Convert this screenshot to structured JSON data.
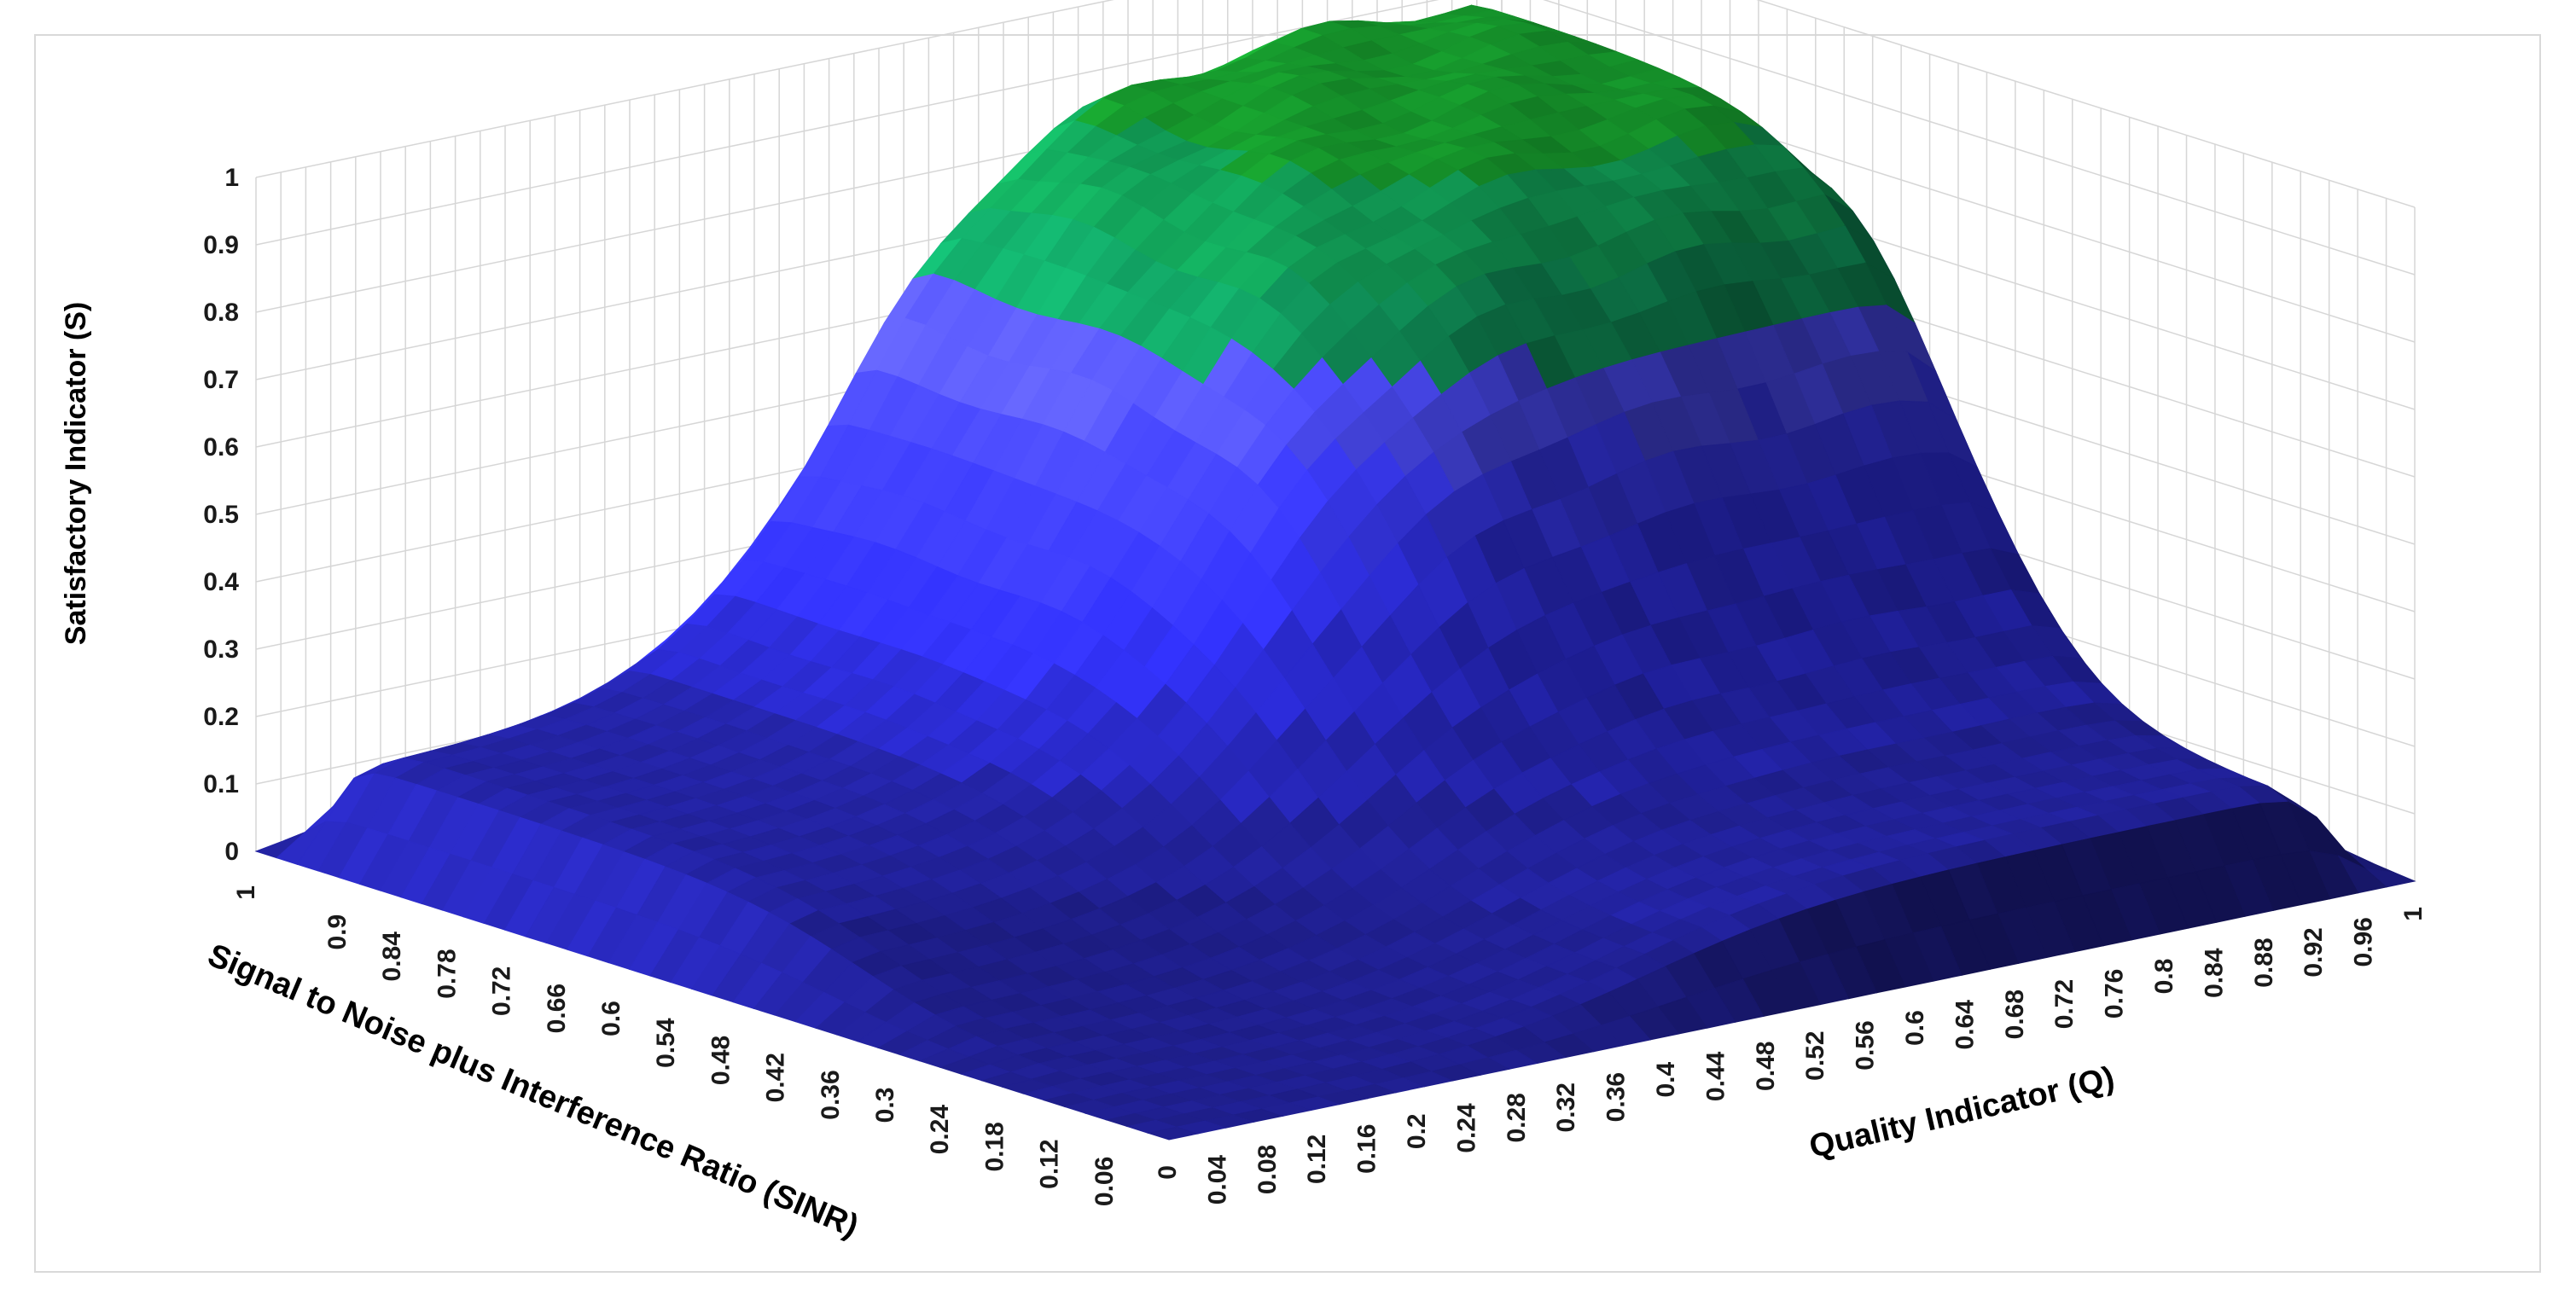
{
  "chart_data": {
    "type": "surface",
    "title": "",
    "xlabel": "Quality Indicator (Q)",
    "ylabel": "Signal to Noise plus Interference Ratio (SINR)",
    "zlabel": "Satisfactory Indicator (S)",
    "z_ticks": [
      "0",
      "0.1",
      "0.2",
      "0.3",
      "0.4",
      "0.5",
      "0.6",
      "0.7",
      "0.8",
      "0.9",
      "1"
    ],
    "q_ticks": [
      "0",
      "0.04",
      "0.08",
      "0.12",
      "0.16",
      "0.2",
      "0.24",
      "0.28",
      "0.32",
      "0.36",
      "0.4",
      "0.44",
      "0.48",
      "0.52",
      "0.56",
      "0.6",
      "0.64",
      "0.68",
      "0.72",
      "0.76",
      "0.8",
      "0.84",
      "0.88",
      "0.92",
      "0.96",
      "1"
    ],
    "sinr_ticks": [
      "0.06",
      "0.12",
      "0.18",
      "0.24",
      "0.3",
      "0.36",
      "0.42",
      "0.48",
      "0.54",
      "0.6",
      "0.66",
      "0.72",
      "0.78",
      "0.84",
      "0.9",
      "1"
    ],
    "zlim": [
      0,
      1
    ],
    "color_bands": [
      {
        "from": 0.0,
        "to": 0.1,
        "color": "#1f1f8f"
      },
      {
        "from": 0.1,
        "to": 0.2,
        "color": "#22229e"
      },
      {
        "from": 0.2,
        "to": 0.3,
        "color": "#2626b8"
      },
      {
        "from": 0.3,
        "to": 0.4,
        "color": "#2a2ad0"
      },
      {
        "from": 0.4,
        "to": 0.5,
        "color": "#3030e6"
      },
      {
        "from": 0.5,
        "to": 0.6,
        "color": "#3838f0"
      },
      {
        "from": 0.6,
        "to": 0.7,
        "color": "#4848ee"
      },
      {
        "from": 0.7,
        "to": 0.8,
        "color": "#0f8a55"
      },
      {
        "from": 0.8,
        "to": 0.9,
        "color": "#10904f"
      },
      {
        "from": 0.9,
        "to": 1.0,
        "color": "#15902a"
      }
    ],
    "grid": true,
    "legend": "none"
  }
}
